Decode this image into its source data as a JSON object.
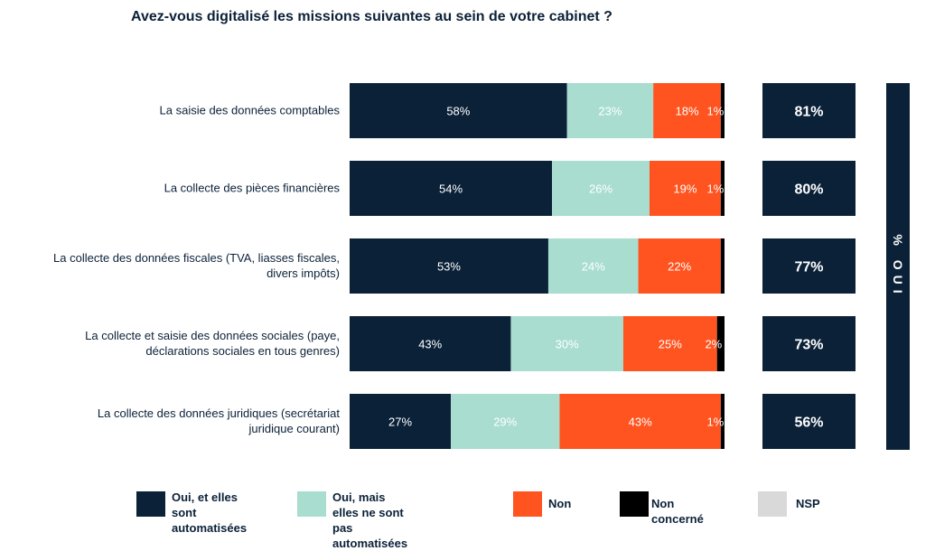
{
  "chart_data": {
    "type": "bar",
    "orientation": "horizontal",
    "stacked": true,
    "title": "Avez-vous digitalisé les missions suivantes au sein de votre cabinet ?",
    "categories": [
      [
        "La saisie des données comptables"
      ],
      [
        "La collecte des pièces financières"
      ],
      [
        "La collecte des données fiscales (TVA, liasses fiscales,",
        "divers impôts)"
      ],
      [
        "La collecte et saisie des données sociales (paye,",
        "déclarations sociales en tous genres)"
      ],
      [
        "La collecte des données juridiques (secrétariat",
        "juridique courant)"
      ]
    ],
    "series": [
      {
        "name": "Oui, et elles sont automatisées",
        "color": "#0b2138",
        "values": [
          58,
          54,
          53,
          43,
          27
        ],
        "labels": [
          "58%",
          "54%",
          "53%",
          "43%",
          "27%"
        ],
        "label_color": "#ffffff"
      },
      {
        "name": "Oui, mais elles ne sont pas automatisées",
        "color": "#a8ddd0",
        "values": [
          23,
          26,
          24,
          30,
          29
        ],
        "labels": [
          "23%",
          "26%",
          "24%",
          "30%",
          "29%"
        ],
        "label_color": "#ffffff"
      },
      {
        "name": "Non",
        "color": "#ff5420",
        "values": [
          18,
          19,
          22,
          25,
          43
        ],
        "labels": [
          "18%",
          "19%",
          "22%",
          "25%",
          "43%"
        ],
        "label_color": "#ffffff"
      },
      {
        "name": "Non concerné",
        "color": "#000000",
        "values": [
          1,
          1,
          1,
          2,
          1
        ],
        "labels": [
          "1%",
          "1%",
          "",
          "2%",
          "1%"
        ],
        "label_color": "#ffffff"
      },
      {
        "name": "NSP",
        "color": "#d9d9d9",
        "values": [
          0,
          0,
          0,
          0,
          0
        ],
        "labels": [
          "",
          "",
          "",
          "",
          ""
        ],
        "label_color": "#0b2138"
      }
    ],
    "total_oui": [
      "81%",
      "80%",
      "77%",
      "73%",
      "56%"
    ],
    "total_header": "% OUI",
    "xlim": [
      0,
      100
    ],
    "legend_position": "bottom",
    "legend": [
      [
        "Oui, et elles sont",
        "automatisées"
      ],
      [
        "Oui, mais elles ne sont",
        "pas automatisées"
      ],
      [
        "Non"
      ],
      [
        "Non concerné"
      ],
      [
        "NSP"
      ]
    ]
  }
}
